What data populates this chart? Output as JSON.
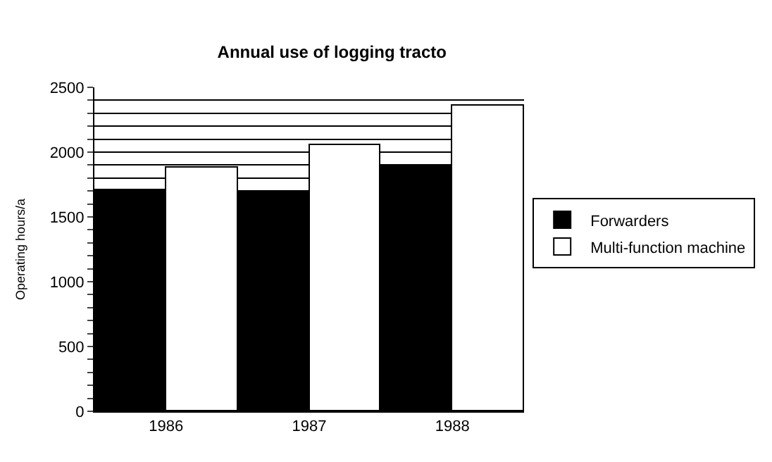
{
  "chart_data": {
    "type": "bar",
    "title": "Annual use of logging tracto",
    "ylabel": "Operating hours/a",
    "categories": [
      "1986",
      "1987",
      "1988"
    ],
    "series": [
      {
        "name": "Forwarders",
        "color": "#000000",
        "values": [
          1710,
          1690,
          1890
        ]
      },
      {
        "name": "Multi-function machine",
        "color": "#ffffff",
        "values": [
          1880,
          2050,
          2360
        ]
      }
    ],
    "ylim": [
      0,
      2500
    ],
    "yticks": [
      0,
      {
        "value": 100,
        "label": null
      },
      {
        "value": 200,
        "label": null
      },
      {
        "value": 300,
        "label": null
      },
      {
        "value": 400,
        "label": null
      },
      500,
      {
        "value": 600,
        "label": null
      },
      {
        "value": 700,
        "label": null
      },
      {
        "value": 800,
        "label": null
      },
      {
        "value": 900,
        "label": null
      },
      1000,
      {
        "value": 1100,
        "label": null
      },
      {
        "value": 1200,
        "label": null
      },
      {
        "value": 1300,
        "label": null
      },
      {
        "value": 1400,
        "label": null
      },
      1500,
      {
        "value": 1600,
        "label": null
      },
      {
        "value": 1700,
        "label": null
      },
      {
        "value": 1800,
        "label": null
      },
      {
        "value": 1900,
        "label": null
      },
      2000,
      {
        "value": 2100,
        "label": null
      },
      {
        "value": 2200,
        "label": null
      },
      {
        "value": 2300,
        "label": null
      },
      {
        "value": 2400,
        "label": null
      },
      2500
    ],
    "grid": "y",
    "legend": "right"
  }
}
